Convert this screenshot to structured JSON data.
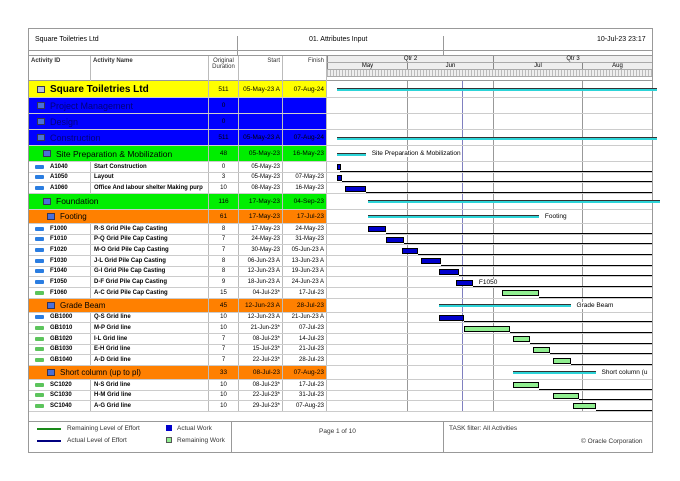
{
  "header": {
    "company": "Square Toiletries Ltd",
    "layout": "01. Attributes Input",
    "date": "10-Jul-23 23:17"
  },
  "columns": {
    "id": "Activity ID",
    "name": "Activity Name",
    "duration": "Original Duration",
    "start": "Start",
    "finish": "Finish"
  },
  "timeline": {
    "quarters": [
      "Qtr 2",
      "Qtr 3"
    ],
    "months": [
      "May",
      "Jun",
      "Jul",
      "Aug"
    ]
  },
  "rows": [
    {
      "type": "project",
      "id": "",
      "name": "Square Toiletries Ltd",
      "dur": "511",
      "start": "05-May-23 A",
      "finish": "07-Aug-24"
    },
    {
      "type": "wbs-blue",
      "id": "",
      "name": "Project Management",
      "dur": "0",
      "start": "",
      "finish": ""
    },
    {
      "type": "wbs-blue",
      "id": "",
      "name": "Design",
      "dur": "0",
      "start": "",
      "finish": ""
    },
    {
      "type": "wbs-blue",
      "id": "",
      "name": "Construction",
      "dur": "511",
      "start": "05-May-23 A",
      "finish": "07-Aug-24"
    },
    {
      "type": "wbs-green",
      "id": "",
      "name": "Site Preparation & Mobilization",
      "dur": "48",
      "start": "05-May-23",
      "finish": "16-May-23",
      "label": "Site Preparation & Mobilization"
    },
    {
      "type": "actual",
      "id": "A1040",
      "name": "Start Construction",
      "dur": "0",
      "start": "05-May-23",
      "finish": ""
    },
    {
      "type": "actual",
      "id": "A1050",
      "name": "Layout",
      "dur": "3",
      "start": "05-May-23",
      "finish": "07-May-23"
    },
    {
      "type": "actual",
      "id": "A1060",
      "name": "Office And labour shelter Making purp",
      "dur": "10",
      "start": "08-May-23",
      "finish": "16-May-23"
    },
    {
      "type": "wbs-green",
      "id": "",
      "name": "Foundation",
      "dur": "116",
      "start": "17-May-23",
      "finish": "04-Sep-23"
    },
    {
      "type": "wbs-orange",
      "id": "",
      "name": "Footing",
      "dur": "61",
      "start": "17-May-23",
      "finish": "17-Jul-23",
      "label": "Footing"
    },
    {
      "type": "actual",
      "id": "F1000",
      "name": "R-S Grid Pile Cap Casting",
      "dur": "8",
      "start": "17-May-23",
      "finish": "24-May-23"
    },
    {
      "type": "actual",
      "id": "F1010",
      "name": "P-Q Grid Pile Cap Casting",
      "dur": "7",
      "start": "24-May-23",
      "finish": "31-May-23"
    },
    {
      "type": "actual",
      "id": "F1020",
      "name": "M-O Grid Pile Cap Casting",
      "dur": "7",
      "start": "30-May-23",
      "finish": "05-Jun-23 A"
    },
    {
      "type": "actual",
      "id": "F1030",
      "name": "J-L Grid Pile Cap Casting",
      "dur": "8",
      "start": "06-Jun-23 A",
      "finish": "13-Jun-23 A"
    },
    {
      "type": "actual",
      "id": "F1040",
      "name": "G-I Grid Pile Cap Casting",
      "dur": "8",
      "start": "12-Jun-23 A",
      "finish": "19-Jun-23 A"
    },
    {
      "type": "actual",
      "id": "F1050",
      "name": "D-F Grid Pile Cap Casting",
      "dur": "9",
      "start": "18-Jun-23 A",
      "finish": "24-Jun-23 A",
      "label": "F1050"
    },
    {
      "type": "remaining",
      "id": "F1060",
      "name": "A-C Grid Pile Cap Casting",
      "dur": "15",
      "start": "04-Jul-23*",
      "finish": "17-Jul-23"
    },
    {
      "type": "wbs-orange",
      "id": "",
      "name": "Grade Beam",
      "dur": "45",
      "start": "12-Jun-23 A",
      "finish": "28-Jul-23",
      "label": "Grade Beam"
    },
    {
      "type": "actual",
      "id": "GB1000",
      "name": "Q-S Grid line",
      "dur": "10",
      "start": "12-Jun-23 A",
      "finish": "21-Jun-23 A"
    },
    {
      "type": "remaining",
      "id": "GB1010",
      "name": "M-P Grid line",
      "dur": "10",
      "start": "21-Jun-23*",
      "finish": "07-Jul-23"
    },
    {
      "type": "remaining",
      "id": "GB1020",
      "name": "I-L Grid line",
      "dur": "7",
      "start": "08-Jul-23*",
      "finish": "14-Jul-23"
    },
    {
      "type": "remaining",
      "id": "GB1030",
      "name": "E-H Grid line",
      "dur": "7",
      "start": "15-Jul-23*",
      "finish": "21-Jul-23"
    },
    {
      "type": "remaining",
      "id": "GB1040",
      "name": "A-D Grid line",
      "dur": "7",
      "start": "22-Jul-23*",
      "finish": "28-Jul-23"
    },
    {
      "type": "wbs-orange",
      "id": "",
      "name": "Short column (up to pl)",
      "dur": "33",
      "start": "08-Jul-23",
      "finish": "07-Aug-23",
      "label": "Short column (u"
    },
    {
      "type": "remaining",
      "id": "SC1020",
      "name": "N-S Grid line",
      "dur": "10",
      "start": "08-Jul-23*",
      "finish": "17-Jul-23"
    },
    {
      "type": "remaining",
      "id": "SC1030",
      "name": "H-M Grid line",
      "dur": "10",
      "start": "22-Jul-23*",
      "finish": "31-Jul-23"
    },
    {
      "type": "remaining",
      "id": "SC1040",
      "name": "A-G Grid line",
      "dur": "10",
      "start": "29-Jul-23*",
      "finish": "07-Aug-23"
    }
  ],
  "legend": {
    "remaining_loe": "Remaining Level of Effort",
    "actual_loe": "Actual Level of Effort",
    "actual_work": "Actual Work",
    "remaining_work": "Remaining Work"
  },
  "footer": {
    "page": "Page 1 of 10",
    "filter": "TASK filter: All Activities",
    "copyright": "© Oracle Corporation"
  },
  "colors": {
    "project": "#ffff00",
    "wbs_blue": "#0000ff",
    "wbs_green": "#00ee00",
    "wbs_orange": "#ff8000",
    "actual_bar": "#0000cc",
    "remaining_bar": "#90ee90",
    "summary_bar": "#2dd4d8"
  }
}
